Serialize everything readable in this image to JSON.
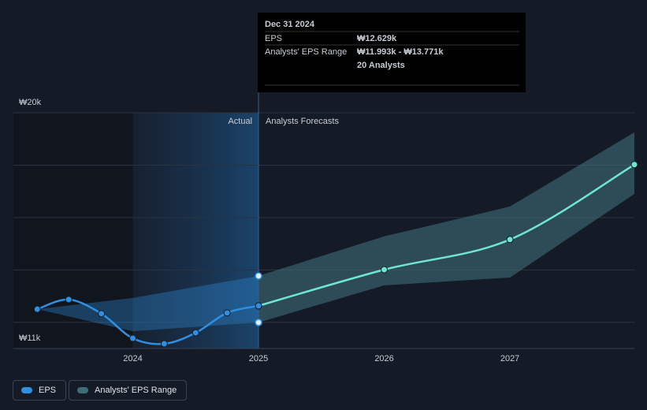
{
  "chart_data": {
    "type": "line",
    "ylim": [
      11000,
      20000
    ],
    "yticks": [
      {
        "value": 11000,
        "label": "₩11k"
      },
      {
        "value": 12000,
        "label": null
      },
      {
        "value": 14000,
        "label": null
      },
      {
        "value": 16000,
        "label": null
      },
      {
        "value": 18000,
        "label": null
      },
      {
        "value": 20000,
        "label": "₩20k"
      }
    ],
    "xlim": [
      2023.05,
      2027.99
    ],
    "xticks": [
      2024,
      2025,
      2026,
      2027
    ],
    "grid": true,
    "series": [
      {
        "name": "EPS",
        "color": "#2f8fe0",
        "x": [
          2023.24,
          2023.49,
          2023.75,
          2024.0,
          2024.25,
          2024.5,
          2024.75,
          2025.0
        ],
        "values": [
          12500,
          12870,
          12330,
          11390,
          11180,
          11600,
          12360,
          12629
        ]
      }
    ],
    "forecast": {
      "color": "#6fe6d0",
      "x": [
        2025.0,
        2026.0,
        2027.0,
        2027.99
      ],
      "values": [
        12629,
        14010,
        15160,
        18020
      ]
    },
    "range": {
      "name": "Analysts' EPS Range",
      "color": "#3d6e78",
      "x": [
        2023.24,
        2024.0,
        2025.0,
        2026.0,
        2027.0,
        2027.99
      ],
      "high": [
        12500,
        12930,
        13771,
        15280,
        16420,
        19250
      ],
      "low": [
        12500,
        11660,
        11993,
        13410,
        13710,
        16900
      ]
    },
    "section_labels": [
      "Actual",
      "Analysts Forecasts"
    ],
    "tooltip": {
      "title": "Dec 31 2024",
      "rows": [
        {
          "label": "EPS",
          "value": "₩12.629k"
        },
        {
          "label": "Analysts' EPS Range",
          "value": "₩11.993k - ₩13.771k"
        }
      ],
      "note": "20 Analysts"
    }
  }
}
